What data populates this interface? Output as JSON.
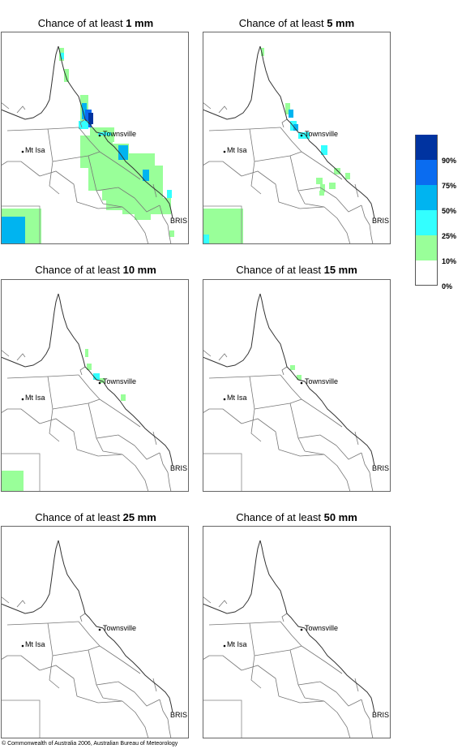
{
  "panels": [
    {
      "prefix": "Chance of at least",
      "amount": "1 mm"
    },
    {
      "prefix": "Chance of at least",
      "amount": "5 mm"
    },
    {
      "prefix": "Chance of at least",
      "amount": "10 mm"
    },
    {
      "prefix": "Chance of at least",
      "amount": "15 mm"
    },
    {
      "prefix": "Chance of at least",
      "amount": "25 mm"
    },
    {
      "prefix": "Chance of at least",
      "amount": "50 mm"
    }
  ],
  "places": {
    "townsville": "Townsville",
    "mt_isa": "Mt Isa",
    "bris": "BRIS"
  },
  "legend": [
    {
      "label": "90%",
      "color": "#0033a0"
    },
    {
      "label": "75%",
      "color": "#0a6cf0"
    },
    {
      "label": "50%",
      "color": "#00b4f0"
    },
    {
      "label": "25%",
      "color": "#33ffff"
    },
    {
      "label": "10%",
      "color": "#99ff99"
    },
    {
      "label": "0%",
      "color": "#ffffff"
    }
  ],
  "copyright": "© Commonwealth of Australia 2006, Australian Bureau of Meteorology"
}
